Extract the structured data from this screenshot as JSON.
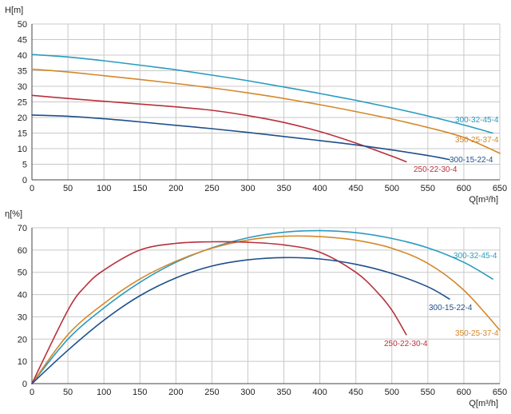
{
  "chart_data": [
    {
      "type": "line",
      "ylabel": "H[m]",
      "xlabel": "Q[m³/h]",
      "xlim": [
        0,
        650
      ],
      "ylim": [
        0,
        50
      ],
      "xticks": [
        "0",
        "50",
        "100",
        "150",
        "200",
        "250",
        "300",
        "350",
        "400",
        "450",
        "500",
        "550",
        "600",
        "650"
      ],
      "yticks": [
        "0",
        "5",
        "10",
        "15",
        "20",
        "25",
        "30",
        "35",
        "40",
        "45",
        "50"
      ],
      "grid": true,
      "series": [
        {
          "name": "300-32-45-4",
          "color": "#2a9bbf",
          "x": [
            0,
            50,
            100,
            150,
            200,
            250,
            300,
            350,
            400,
            450,
            500,
            550,
            600,
            640
          ],
          "y": [
            40.2,
            39.4,
            38.2,
            36.8,
            35.3,
            33.6,
            31.8,
            29.8,
            27.7,
            25.5,
            23.1,
            20.5,
            17.6,
            15
          ]
        },
        {
          "name": "350-25-37-4",
          "color": "#d4882a",
          "x": [
            0,
            50,
            100,
            150,
            200,
            250,
            300,
            350,
            400,
            450,
            500,
            550,
            600,
            650
          ],
          "y": [
            35.5,
            34.6,
            33.4,
            32.2,
            30.9,
            29.5,
            27.9,
            26.1,
            24.1,
            21.9,
            19.5,
            16.8,
            13.6,
            8.5
          ]
        },
        {
          "name": "250-22-30-4",
          "color": "#b8303c",
          "x": [
            0,
            50,
            100,
            150,
            200,
            250,
            300,
            350,
            400,
            450,
            480,
            500,
            520
          ],
          "y": [
            27.1,
            26.1,
            25.2,
            24.3,
            23.4,
            22.3,
            20.6,
            18.4,
            15.5,
            11.8,
            9.3,
            7.6,
            5.8
          ]
        },
        {
          "name": "300-15-22-4",
          "color": "#1e4f8a",
          "x": [
            0,
            50,
            100,
            150,
            200,
            250,
            300,
            350,
            400,
            450,
            500,
            550,
            580
          ],
          "y": [
            20.8,
            20.4,
            19.6,
            18.6,
            17.5,
            16.4,
            15.2,
            13.9,
            12.6,
            11.2,
            9.6,
            7.8,
            6.5
          ]
        }
      ]
    },
    {
      "type": "line",
      "ylabel": "η[%]",
      "xlabel": "Q[m³/h]",
      "xlim": [
        0,
        650
      ],
      "ylim": [
        0,
        70
      ],
      "xticks": [
        "0",
        "50",
        "100",
        "150",
        "200",
        "250",
        "300",
        "350",
        "400",
        "450",
        "500",
        "550",
        "600",
        "650"
      ],
      "yticks": [
        "0",
        "10",
        "20",
        "30",
        "40",
        "50",
        "60",
        "70"
      ],
      "grid": true,
      "series": [
        {
          "name": "300-32-45-4",
          "color": "#2a9bbf",
          "x": [
            0,
            50,
            100,
            150,
            200,
            250,
            300,
            350,
            400,
            450,
            500,
            550,
            600,
            640
          ],
          "y": [
            0,
            20,
            34,
            45.5,
            54.5,
            61,
            65.5,
            68,
            68.7,
            67.8,
            65.2,
            61,
            54.5,
            47
          ]
        },
        {
          "name": "350-25-37-4",
          "color": "#d4882a",
          "x": [
            0,
            50,
            100,
            150,
            200,
            250,
            300,
            350,
            400,
            450,
            500,
            550,
            600,
            650
          ],
          "y": [
            0,
            22,
            36,
            47,
            55,
            60.8,
            64.5,
            66.2,
            66,
            64.4,
            60.8,
            54,
            42,
            24
          ]
        },
        {
          "name": "250-22-30-4",
          "color": "#b8303c",
          "x": [
            0,
            50,
            75,
            100,
            150,
            200,
            250,
            300,
            350,
            400,
            450,
            480,
            500,
            520
          ],
          "y": [
            0,
            33,
            44,
            51,
            60,
            63,
            63.7,
            63.5,
            62.3,
            59,
            50,
            41,
            33,
            22
          ]
        },
        {
          "name": "300-15-22-4",
          "color": "#1e4f8a",
          "x": [
            0,
            50,
            100,
            150,
            200,
            250,
            300,
            350,
            400,
            450,
            500,
            550,
            580
          ],
          "y": [
            0,
            15,
            28.5,
            39.5,
            47.5,
            52.8,
            55.6,
            56.6,
            56,
            53.6,
            49.5,
            43.5,
            38
          ]
        }
      ]
    }
  ]
}
